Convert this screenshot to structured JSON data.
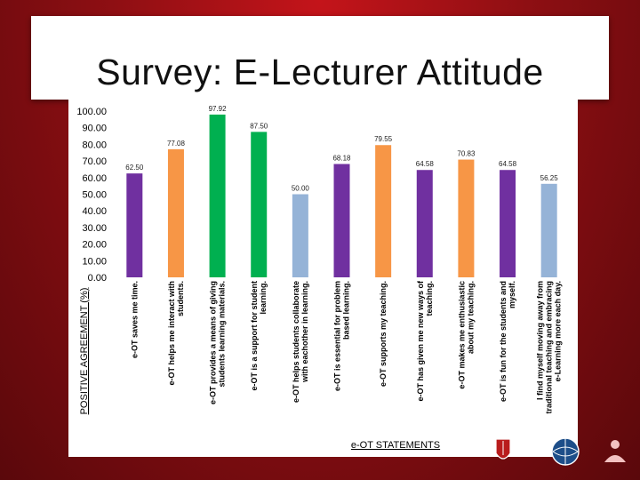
{
  "slide": {
    "title": "Survey: E-Lecturer Attitude"
  },
  "chart_data": {
    "type": "bar",
    "title": "",
    "xlabel": "e-OT STATEMENTS",
    "ylabel": "POSITIVE AGREEMENT (%)",
    "ylim": [
      0,
      100
    ],
    "yticks": [
      "0.00",
      "10.00",
      "20.00",
      "30.00",
      "40.00",
      "50.00",
      "60.00",
      "70.00",
      "80.00",
      "90.00",
      "100.00"
    ],
    "grid": false,
    "categories": [
      [
        "e-OT saves me time."
      ],
      [
        "e-OT helps me interact with",
        "students."
      ],
      [
        "e-OT provides a means of giving",
        "students learning materials."
      ],
      [
        "e-OT is a support for student",
        "learning."
      ],
      [
        "e-OT helps students collaborate",
        "with eachother in learning."
      ],
      [
        "e-OT is essential for problem",
        "based learning."
      ],
      [
        "e-OT supports my teaching."
      ],
      [
        "e-OT has given me new ways of",
        "teaching."
      ],
      [
        "e-OT makes me enthusiastic",
        "about my teaching."
      ],
      [
        "e-OT is fun for the students and",
        "myself."
      ],
      [
        "I find myself moving away from",
        "traditional teaching and embracing",
        "e-Learning more each day."
      ]
    ],
    "values": [
      62.5,
      77.08,
      97.92,
      87.5,
      50.0,
      68.18,
      79.55,
      64.58,
      70.83,
      64.58,
      56.25
    ],
    "value_labels": [
      "62.50",
      "77.08",
      "97.92",
      "87.50",
      "50.00",
      "68.18",
      "79.55",
      "64.58",
      "70.83",
      "64.58",
      "56.25"
    ],
    "colors": [
      "#7030a0",
      "#f79646",
      "#00b050",
      "#00b050",
      "#95b3d7",
      "#7030a0",
      "#f79646",
      "#7030a0",
      "#f79646",
      "#7030a0",
      "#95b3d7"
    ]
  }
}
